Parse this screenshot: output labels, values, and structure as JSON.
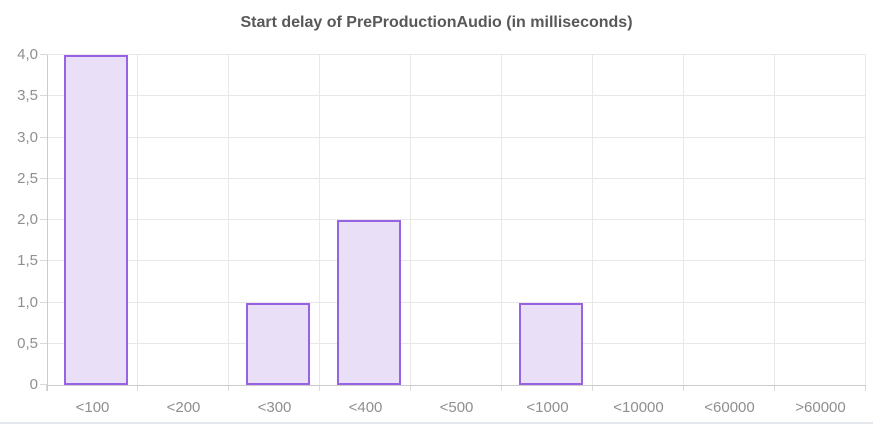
{
  "chart_data": {
    "type": "bar",
    "title": "Start delay of PreProductionAudio (in milliseconds)",
    "categories": [
      "<100",
      "<200",
      "<300",
      "<400",
      "<500",
      "<1000",
      "<10000",
      "<60000",
      ">60000"
    ],
    "values": [
      4,
      0,
      1,
      2,
      0,
      1,
      0,
      0,
      0
    ],
    "xlabel": "",
    "ylabel": "",
    "ylim": [
      0,
      4
    ],
    "yticks": [
      {
        "v": 0,
        "label": "0"
      },
      {
        "v": 0.5,
        "label": "0,5"
      },
      {
        "v": 1,
        "label": "1,0"
      },
      {
        "v": 1.5,
        "label": "1,5"
      },
      {
        "v": 2,
        "label": "2,0"
      },
      {
        "v": 2.5,
        "label": "2,5"
      },
      {
        "v": 3,
        "label": "3,0"
      },
      {
        "v": 3.5,
        "label": "3,5"
      },
      {
        "v": 4,
        "label": "4,0"
      }
    ],
    "grid": true,
    "legend": "none",
    "decimal_separator": ",",
    "colors": {
      "bar_fill": "#e9e0f8",
      "bar_border": "#9663e3",
      "grid": "#e8e8e8",
      "axis": "#cccccc",
      "tick": "#d9d9d9",
      "label_text": "#8f8f8f",
      "title_text": "#58585a"
    }
  }
}
